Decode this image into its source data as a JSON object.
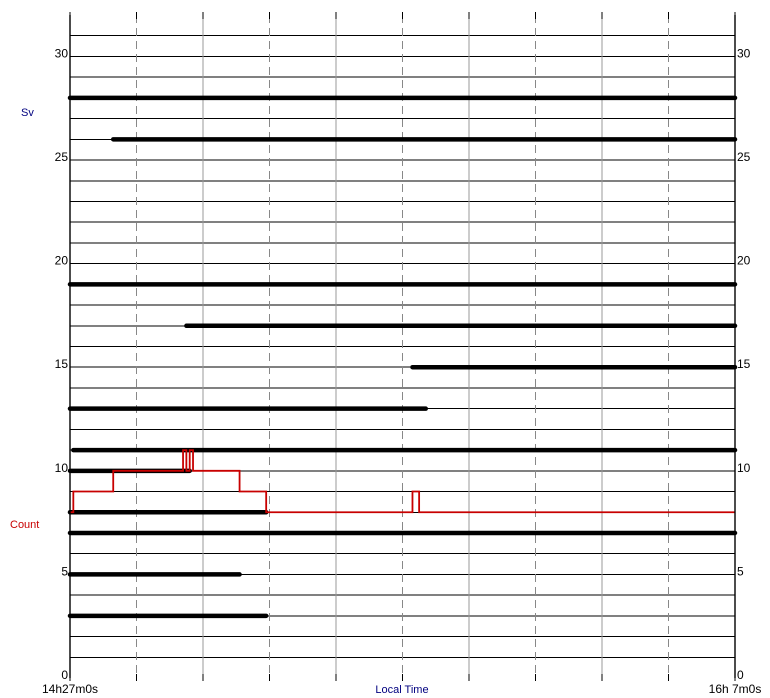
{
  "chart_data": {
    "type": "line",
    "xlabel": "Local Time",
    "ylabel_left": "Sv",
    "ylabel_left_color": "#00007f",
    "count_label": "Count",
    "count_color": "#c80000",
    "line_color": "#000000",
    "ylim": [
      0,
      32
    ],
    "y_ticks": [
      0,
      5,
      10,
      15,
      20,
      25,
      30
    ],
    "y_tick_labels": [
      "0",
      "5",
      "10",
      "15",
      "20",
      "25",
      "30"
    ],
    "x_tick_labels": [
      "14h27m0s",
      "16h 7m0s"
    ],
    "xlim": [
      "14h27m0s",
      "16h 7m0s"
    ],
    "grid": true,
    "sv_segments": [
      {
        "y": 28,
        "start": "14h27m0s",
        "end": "16h 7m0s"
      },
      {
        "y": 26,
        "start": "14h33m30s",
        "end": "16h 7m0s"
      },
      {
        "y": 19,
        "start": "14h27m0s",
        "end": "16h 7m0s"
      },
      {
        "y": 17,
        "start": "14h44m30s",
        "end": "16h 7m0s"
      },
      {
        "y": 15,
        "start": "15h18m30s",
        "end": "16h 7m0s"
      },
      {
        "y": 13,
        "start": "14h27m0s",
        "end": "15h20m30s"
      },
      {
        "y": 11,
        "start": "14h27m30s",
        "end": "16h 7m0s"
      },
      {
        "y": 10,
        "start": "14h27m0s",
        "end": "14h45m0s"
      },
      {
        "y": 8,
        "start": "14h27m0s",
        "end": "14h56m30s"
      },
      {
        "y": 7,
        "start": "14h27m0s",
        "end": "16h 7m0s"
      },
      {
        "y": 5,
        "start": "14h27m0s",
        "end": "14h52m30s"
      },
      {
        "y": 3,
        "start": "14h27m0s",
        "end": "14h56m30s"
      }
    ],
    "count_series": [
      {
        "t": "14h27m0s",
        "v": 8
      },
      {
        "t": "14h27m30s",
        "v": 9
      },
      {
        "t": "14h33m30s",
        "v": 10
      },
      {
        "t": "14h44m0s",
        "v": 11
      },
      {
        "t": "14h44m30s",
        "v": 10
      },
      {
        "t": "14h45m0s",
        "v": 11
      },
      {
        "t": "14h45m30s",
        "v": 10
      },
      {
        "t": "14h52m30s",
        "v": 9
      },
      {
        "t": "14h56m30s",
        "v": 8
      },
      {
        "t": "15h18m30s",
        "v": 9
      },
      {
        "t": "15h19m30s",
        "v": 8
      },
      {
        "t": "16h 7m0s",
        "v": 8
      }
    ]
  }
}
